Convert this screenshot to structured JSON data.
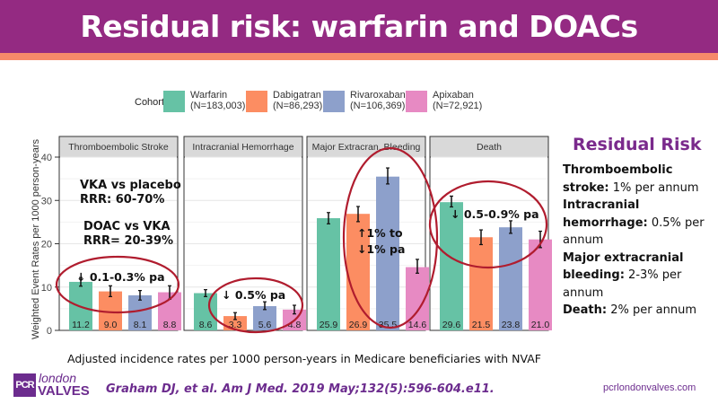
{
  "slide": {
    "title": "Residual risk: warfarin and DOACs",
    "caption": "Adjusted incidence rates per 1000 person-years in Medicare beneficiaries with NVAF",
    "citation": "Graham DJ, et al. Am J Med. 2019 May;132(5):596-604.e11.",
    "website": "pcrlondonvalves.com",
    "logo": {
      "box_text": "PCR",
      "line1": "london",
      "line2": "VALVES"
    },
    "colors": {
      "header": "#942a82",
      "band": "#f6896a",
      "brand": "#6c2c8e",
      "ellipse": "#b01c2e"
    }
  },
  "side_panel": {
    "title": "Residual Risk",
    "items": [
      {
        "label": "Thromboembolic stroke:",
        "value": "1% per annum"
      },
      {
        "label": "Intracranial hemorrhage:",
        "value": "0.5% per annum"
      },
      {
        "label": "Major extracranial bleeding:",
        "value": "2-3% per annum"
      },
      {
        "label": "Death:",
        "value": "2% per annum"
      }
    ]
  },
  "chart_data": {
    "type": "bar",
    "title": "",
    "ylabel": "Weighted Event Rates per 1000 person-years",
    "xlabel": "",
    "ylim": [
      0,
      40
    ],
    "yticks": [
      0,
      10,
      20,
      30,
      40
    ],
    "grid": true,
    "legend_title": "Cohort",
    "legend_position": "top",
    "series": [
      {
        "name": "Warfarin",
        "n": "(N=183,003)",
        "color": "#66c2a5"
      },
      {
        "name": "Dabigatran",
        "n": "(N=86,293)",
        "color": "#fc8d62"
      },
      {
        "name": "Rivaroxaban",
        "n": "(N=106,369)",
        "color": "#8da0cb"
      },
      {
        "name": "Apixaban",
        "n": "(N=72,921)",
        "color": "#e78ac3"
      }
    ],
    "panels": [
      {
        "name": "Thromboembolic Stroke",
        "values": [
          11.2,
          9.0,
          8.1,
          8.8
        ],
        "err_low": [
          10.2,
          7.8,
          7.0,
          7.2
        ],
        "err_high": [
          12.2,
          10.3,
          9.2,
          10.3
        ]
      },
      {
        "name": "Intracranial Hemorrhage",
        "values": [
          8.6,
          3.3,
          5.6,
          4.8
        ],
        "err_low": [
          7.8,
          2.5,
          4.8,
          3.8
        ],
        "err_high": [
          9.4,
          4.1,
          6.6,
          5.8
        ]
      },
      {
        "name": "Major Extracran. Bleeding",
        "values": [
          25.9,
          26.9,
          35.5,
          14.6
        ],
        "err_low": [
          24.6,
          25.1,
          33.8,
          13.2
        ],
        "err_high": [
          27.2,
          28.6,
          37.5,
          16.4
        ]
      },
      {
        "name": "Death",
        "values": [
          29.6,
          21.5,
          23.8,
          21.0
        ],
        "err_low": [
          28.5,
          19.8,
          22.4,
          19.1
        ],
        "err_high": [
          31.0,
          23.2,
          25.3,
          22.9
        ]
      }
    ],
    "annotations": [
      {
        "panel": 0,
        "lines": [
          "VKA vs placebo",
          "RRR: 60-70%"
        ]
      },
      {
        "panel": 0,
        "lines": [
          "DOAC vs VKA",
          "RRR= 20-39%"
        ]
      },
      {
        "panel": 0,
        "lines": [
          "↓ 0.1-0.3% pa"
        ]
      },
      {
        "panel": 1,
        "lines": [
          "↓ 0.5% pa"
        ]
      },
      {
        "panel": 2,
        "lines": [
          "↑1% to",
          "↓1% pa"
        ]
      },
      {
        "panel": 3,
        "lines": [
          "↓ 0.5-0.9% pa"
        ]
      }
    ]
  }
}
